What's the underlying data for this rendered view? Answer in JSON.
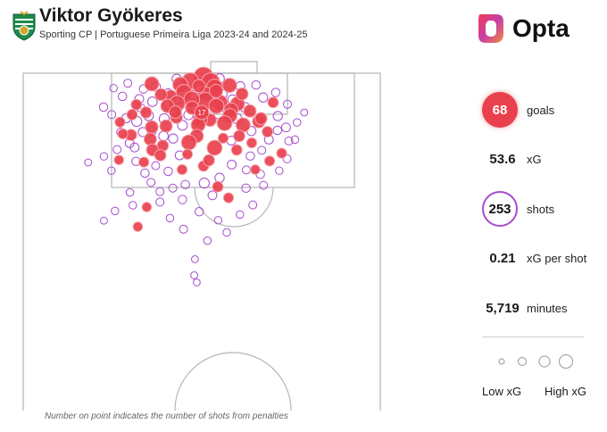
{
  "header": {
    "player_name": "Viktor Gyökeres",
    "subtitle": "Sporting CP | Portuguese Primeira Liga 2023-24 and 2024-25",
    "brand": "Opta"
  },
  "stats": {
    "goals": {
      "value": "68",
      "label": "goals"
    },
    "xg": {
      "value": "53.6",
      "label": "xG"
    },
    "shots": {
      "value": "253",
      "label": "shots"
    },
    "xg_per_shot": {
      "value": "0.21",
      "label": "xG per shot"
    },
    "minutes": {
      "value": "5,719",
      "label": "minutes"
    }
  },
  "legend": {
    "low": "Low xG",
    "high": "High xG"
  },
  "footnote": "Number on point indicates the number of shots from penalties",
  "colors": {
    "goal": "#e8404d",
    "shot": "#a54ccf",
    "pitch_line": "#b5b5b5",
    "crest_green": "#1f8a4c"
  },
  "chart_data": {
    "type": "scatter",
    "description_units": "pitch coordinates: x = 0..100 across width (left to right), y = metres from goal line (0 at top)",
    "penalty_label": "17",
    "penalty_point": {
      "x": 50.0,
      "y": 11.0,
      "xg": 0.79
    },
    "goals": [
      {
        "x": 50.5,
        "y": 1.0,
        "xg": 0.7
      },
      {
        "x": 46.8,
        "y": 2.2,
        "xg": 0.45
      },
      {
        "x": 52.5,
        "y": 2.5,
        "xg": 0.6
      },
      {
        "x": 44.0,
        "y": 3.2,
        "xg": 0.35
      },
      {
        "x": 36.0,
        "y": 3.0,
        "xg": 0.3
      },
      {
        "x": 53.6,
        "y": 4.0,
        "xg": 0.45
      },
      {
        "x": 57.8,
        "y": 3.4,
        "xg": 0.3
      },
      {
        "x": 45.0,
        "y": 5.4,
        "xg": 0.4
      },
      {
        "x": 51.0,
        "y": 5.8,
        "xg": 0.3
      },
      {
        "x": 41.3,
        "y": 6.4,
        "xg": 0.18
      },
      {
        "x": 51.0,
        "y": 7.8,
        "xg": 0.5
      },
      {
        "x": 47.2,
        "y": 7.3,
        "xg": 0.4
      },
      {
        "x": 43.1,
        "y": 8.5,
        "xg": 0.4
      },
      {
        "x": 55.1,
        "y": 8.2,
        "xg": 0.35
      },
      {
        "x": 60.0,
        "y": 8.6,
        "xg": 0.3
      },
      {
        "x": 54.1,
        "y": 9.2,
        "xg": 0.35
      },
      {
        "x": 47.3,
        "y": 9.7,
        "xg": 0.25
      },
      {
        "x": 40.4,
        "y": 9.2,
        "xg": 0.25
      },
      {
        "x": 58.2,
        "y": 10.3,
        "xg": 0.3
      },
      {
        "x": 34.4,
        "y": 11.0,
        "xg": 0.15
      },
      {
        "x": 57.9,
        "y": 11.9,
        "xg": 0.3
      },
      {
        "x": 52.3,
        "y": 13.1,
        "xg": 0.22
      },
      {
        "x": 49.6,
        "y": 13.1,
        "xg": 0.3
      },
      {
        "x": 56.4,
        "y": 14.0,
        "xg": 0.35
      },
      {
        "x": 49.0,
        "y": 14.5,
        "xg": 0.3
      },
      {
        "x": 40.0,
        "y": 14.8,
        "xg": 0.2
      },
      {
        "x": 36.0,
        "y": 15.1,
        "xg": 0.22
      },
      {
        "x": 61.6,
        "y": 14.5,
        "xg": 0.3
      },
      {
        "x": 66.0,
        "y": 13.5,
        "xg": 0.22
      },
      {
        "x": 35.6,
        "y": 18.5,
        "xg": 0.2
      },
      {
        "x": 30.2,
        "y": 17.3,
        "xg": 0.15
      },
      {
        "x": 68.4,
        "y": 16.4,
        "xg": 0.12
      },
      {
        "x": 48.6,
        "y": 17.6,
        "xg": 0.25
      },
      {
        "x": 46.4,
        "y": 19.4,
        "xg": 0.35
      },
      {
        "x": 39.1,
        "y": 20.3,
        "xg": 0.15
      },
      {
        "x": 53.6,
        "y": 20.9,
        "xg": 0.35
      },
      {
        "x": 36.2,
        "y": 21.5,
        "xg": 0.18
      },
      {
        "x": 38.4,
        "y": 23.0,
        "xg": 0.15
      },
      {
        "x": 50.5,
        "y": 26.0,
        "xg": 0.12
      },
      {
        "x": 52.0,
        "y": 24.4,
        "xg": 0.15
      },
      {
        "x": 44.5,
        "y": 27.0,
        "xg": 0.1
      },
      {
        "x": 54.5,
        "y": 31.8,
        "xg": 0.12
      },
      {
        "x": 57.5,
        "y": 34.9,
        "xg": 0.1
      },
      {
        "x": 34.6,
        "y": 37.5,
        "xg": 0.08
      },
      {
        "x": 32.1,
        "y": 43.0,
        "xg": 0.08
      },
      {
        "x": 60.5,
        "y": 17.6,
        "xg": 0.15
      },
      {
        "x": 64.0,
        "y": 19.5,
        "xg": 0.1
      },
      {
        "x": 42.9,
        "y": 12.4,
        "xg": 0.18
      },
      {
        "x": 30.5,
        "y": 11.6,
        "xg": 0.12
      },
      {
        "x": 27.1,
        "y": 13.7,
        "xg": 0.1
      },
      {
        "x": 27.9,
        "y": 17.0,
        "xg": 0.1
      },
      {
        "x": 63.5,
        "y": 10.6,
        "xg": 0.2
      },
      {
        "x": 66.6,
        "y": 12.7,
        "xg": 0.18
      },
      {
        "x": 70.0,
        "y": 8.2,
        "xg": 0.12
      },
      {
        "x": 72.4,
        "y": 22.4,
        "xg": 0.1
      },
      {
        "x": 69.0,
        "y": 24.6,
        "xg": 0.1
      },
      {
        "x": 26.8,
        "y": 24.3,
        "xg": 0.08
      },
      {
        "x": 59.8,
        "y": 21.5,
        "xg": 0.12
      },
      {
        "x": 56.0,
        "y": 18.2,
        "xg": 0.1
      },
      {
        "x": 54.0,
        "y": 5.0,
        "xg": 0.25
      },
      {
        "x": 49.2,
        "y": 3.6,
        "xg": 0.22
      },
      {
        "x": 61.3,
        "y": 5.8,
        "xg": 0.18
      },
      {
        "x": 38.6,
        "y": 6.0,
        "xg": 0.18
      },
      {
        "x": 42.6,
        "y": 10.9,
        "xg": 0.2
      },
      {
        "x": 31.7,
        "y": 8.8,
        "xg": 0.12
      },
      {
        "x": 33.8,
        "y": 24.9,
        "xg": 0.1
      },
      {
        "x": 65.0,
        "y": 27.0,
        "xg": 0.08
      },
      {
        "x": 46.0,
        "y": 22.7,
        "xg": 0.1
      }
    ],
    "shots": [
      {
        "x": 29.3,
        "y": 2.8,
        "xg": 0.04
      },
      {
        "x": 25.3,
        "y": 4.2,
        "xg": 0.03
      },
      {
        "x": 27.8,
        "y": 6.5,
        "xg": 0.05
      },
      {
        "x": 32.5,
        "y": 7.2,
        "xg": 0.06
      },
      {
        "x": 36.2,
        "y": 8.0,
        "xg": 0.08
      },
      {
        "x": 22.5,
        "y": 9.5,
        "xg": 0.05
      },
      {
        "x": 24.8,
        "y": 11.6,
        "xg": 0.04
      },
      {
        "x": 28.9,
        "y": 12.6,
        "xg": 0.07
      },
      {
        "x": 31.8,
        "y": 13.5,
        "xg": 0.1
      },
      {
        "x": 33.5,
        "y": 16.5,
        "xg": 0.07
      },
      {
        "x": 29.8,
        "y": 19.6,
        "xg": 0.06
      },
      {
        "x": 26.3,
        "y": 21.4,
        "xg": 0.04
      },
      {
        "x": 22.6,
        "y": 23.3,
        "xg": 0.03
      },
      {
        "x": 18.2,
        "y": 25.0,
        "xg": 0.02
      },
      {
        "x": 24.7,
        "y": 27.3,
        "xg": 0.03
      },
      {
        "x": 31.6,
        "y": 24.7,
        "xg": 0.05
      },
      {
        "x": 37.1,
        "y": 25.9,
        "xg": 0.04
      },
      {
        "x": 40.6,
        "y": 27.5,
        "xg": 0.05
      },
      {
        "x": 35.8,
        "y": 30.6,
        "xg": 0.04
      },
      {
        "x": 29.9,
        "y": 33.4,
        "xg": 0.03
      },
      {
        "x": 25.7,
        "y": 38.6,
        "xg": 0.03
      },
      {
        "x": 22.6,
        "y": 41.3,
        "xg": 0.02
      },
      {
        "x": 30.7,
        "y": 37.0,
        "xg": 0.03
      },
      {
        "x": 38.3,
        "y": 36.1,
        "xg": 0.04
      },
      {
        "x": 44.6,
        "y": 35.4,
        "xg": 0.05
      },
      {
        "x": 41.1,
        "y": 40.6,
        "xg": 0.03
      },
      {
        "x": 44.9,
        "y": 43.7,
        "xg": 0.04
      },
      {
        "x": 49.3,
        "y": 38.8,
        "xg": 0.05
      },
      {
        "x": 54.6,
        "y": 41.2,
        "xg": 0.03
      },
      {
        "x": 51.6,
        "y": 46.9,
        "xg": 0.03
      },
      {
        "x": 48.1,
        "y": 52.1,
        "xg": 0.02
      },
      {
        "x": 47.9,
        "y": 56.6,
        "xg": 0.02
      },
      {
        "x": 48.6,
        "y": 58.6,
        "xg": 0.02
      },
      {
        "x": 57.0,
        "y": 44.6,
        "xg": 0.03
      },
      {
        "x": 60.7,
        "y": 39.6,
        "xg": 0.03
      },
      {
        "x": 64.3,
        "y": 36.9,
        "xg": 0.04
      },
      {
        "x": 62.4,
        "y": 32.2,
        "xg": 0.05
      },
      {
        "x": 67.3,
        "y": 31.4,
        "xg": 0.04
      },
      {
        "x": 66.4,
        "y": 28.3,
        "xg": 0.05
      },
      {
        "x": 71.7,
        "y": 27.3,
        "xg": 0.03
      },
      {
        "x": 73.9,
        "y": 24.0,
        "xg": 0.04
      },
      {
        "x": 74.4,
        "y": 19.0,
        "xg": 0.04
      },
      {
        "x": 73.6,
        "y": 15.2,
        "xg": 0.06
      },
      {
        "x": 71.3,
        "y": 12.0,
        "xg": 0.07
      },
      {
        "x": 70.7,
        "y": 5.4,
        "xg": 0.05
      },
      {
        "x": 65.2,
        "y": 3.3,
        "xg": 0.05
      },
      {
        "x": 67.2,
        "y": 6.8,
        "xg": 0.07
      },
      {
        "x": 74.0,
        "y": 8.7,
        "xg": 0.04
      },
      {
        "x": 76.7,
        "y": 13.8,
        "xg": 0.03
      },
      {
        "x": 76.1,
        "y": 18.6,
        "xg": 0.03
      },
      {
        "x": 78.7,
        "y": 11.0,
        "xg": 0.02
      },
      {
        "x": 68.8,
        "y": 18.6,
        "xg": 0.06
      },
      {
        "x": 63.6,
        "y": 23.2,
        "xg": 0.05
      },
      {
        "x": 58.4,
        "y": 25.6,
        "xg": 0.06
      },
      {
        "x": 55.0,
        "y": 29.3,
        "xg": 0.07
      },
      {
        "x": 50.7,
        "y": 30.8,
        "xg": 0.1
      },
      {
        "x": 53.0,
        "y": 34.2,
        "xg": 0.06
      },
      {
        "x": 45.4,
        "y": 31.2,
        "xg": 0.05
      },
      {
        "x": 41.9,
        "y": 32.2,
        "xg": 0.04
      },
      {
        "x": 43.8,
        "y": 23.0,
        "xg": 0.06
      },
      {
        "x": 39.3,
        "y": 17.6,
        "xg": 0.08
      },
      {
        "x": 35.1,
        "y": 11.9,
        "xg": 0.09
      },
      {
        "x": 39.5,
        "y": 12.8,
        "xg": 0.1
      },
      {
        "x": 44.6,
        "y": 14.6,
        "xg": 0.09
      },
      {
        "x": 42.0,
        "y": 18.3,
        "xg": 0.07
      },
      {
        "x": 46.3,
        "y": 11.7,
        "xg": 0.08
      },
      {
        "x": 48.5,
        "y": 9.6,
        "xg": 0.12
      },
      {
        "x": 54.8,
        "y": 11.4,
        "xg": 0.09
      },
      {
        "x": 59.8,
        "y": 12.7,
        "xg": 0.1
      },
      {
        "x": 62.1,
        "y": 9.6,
        "xg": 0.09
      },
      {
        "x": 58.6,
        "y": 7.4,
        "xg": 0.08
      },
      {
        "x": 55.8,
        "y": 5.9,
        "xg": 0.07
      },
      {
        "x": 47.7,
        "y": 6.1,
        "xg": 0.08
      },
      {
        "x": 43.3,
        "y": 7.3,
        "xg": 0.07
      },
      {
        "x": 40.6,
        "y": 5.6,
        "xg": 0.06
      },
      {
        "x": 37.2,
        "y": 3.8,
        "xg": 0.06
      },
      {
        "x": 33.7,
        "y": 4.4,
        "xg": 0.05
      },
      {
        "x": 36.1,
        "y": 16.2,
        "xg": 0.05
      },
      {
        "x": 31.2,
        "y": 20.8,
        "xg": 0.06
      },
      {
        "x": 27.3,
        "y": 16.5,
        "xg": 0.04
      },
      {
        "x": 63.9,
        "y": 16.2,
        "xg": 0.07
      },
      {
        "x": 66.8,
        "y": 21.6,
        "xg": 0.04
      },
      {
        "x": 71.2,
        "y": 16.0,
        "xg": 0.05
      },
      {
        "x": 58.3,
        "y": 18.9,
        "xg": 0.06
      },
      {
        "x": 62.5,
        "y": 27.1,
        "xg": 0.04
      },
      {
        "x": 38.3,
        "y": 33.2,
        "xg": 0.04
      },
      {
        "x": 34.1,
        "y": 28.0,
        "xg": 0.05
      },
      {
        "x": 40.5,
        "y": 8.7,
        "xg": 0.06
      },
      {
        "x": 60.8,
        "y": 3.6,
        "xg": 0.06
      },
      {
        "x": 55.0,
        "y": 1.5,
        "xg": 0.08
      },
      {
        "x": 43.0,
        "y": 1.6,
        "xg": 0.08
      },
      {
        "x": 32.9,
        "y": 9.7,
        "xg": 0.05
      }
    ]
  }
}
